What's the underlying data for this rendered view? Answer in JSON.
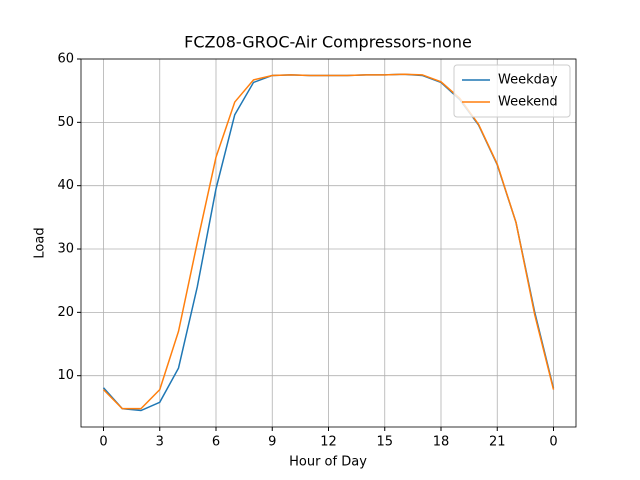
{
  "chart_data": {
    "type": "line",
    "title": "FCZ08-GROC-Air Compressors-none",
    "x_label": "Hour of Day",
    "y_label": "Load",
    "x": [
      0,
      1,
      2,
      3,
      4,
      5,
      6,
      7,
      8,
      9,
      10,
      11,
      12,
      13,
      14,
      15,
      16,
      17,
      18,
      19,
      20,
      21,
      22,
      23,
      24
    ],
    "series": [
      {
        "name": "Weekday",
        "color": "#1f77b4",
        "values": [
          8.1,
          4.8,
          4.5,
          5.8,
          11.2,
          24,
          39.5,
          51.2,
          56.3,
          57.4,
          57.5,
          57.4,
          57.4,
          57.4,
          57.5,
          57.5,
          57.6,
          57.4,
          56.3,
          53.6,
          49.6,
          43.3,
          34.2,
          20,
          8.0
        ]
      },
      {
        "name": "Weekend",
        "color": "#ff7f0e",
        "values": [
          7.8,
          4.8,
          4.8,
          7.8,
          17,
          31,
          44.5,
          53.2,
          56.7,
          57.4,
          57.5,
          57.4,
          57.4,
          57.4,
          57.5,
          57.5,
          57.6,
          57.5,
          56.4,
          53.8,
          49.7,
          43.4,
          34.2,
          19.6,
          7.8
        ]
      }
    ],
    "xlim": [
      -1.2,
      25.2
    ],
    "xticks": [
      0,
      3,
      6,
      9,
      12,
      15,
      18,
      21,
      {
        "value": 24,
        "label": "0"
      }
    ],
    "ylim": [
      1.9,
      60
    ],
    "yticks": [
      10,
      20,
      30,
      40,
      50,
      60
    ],
    "grid": true,
    "legend": "upper right"
  }
}
